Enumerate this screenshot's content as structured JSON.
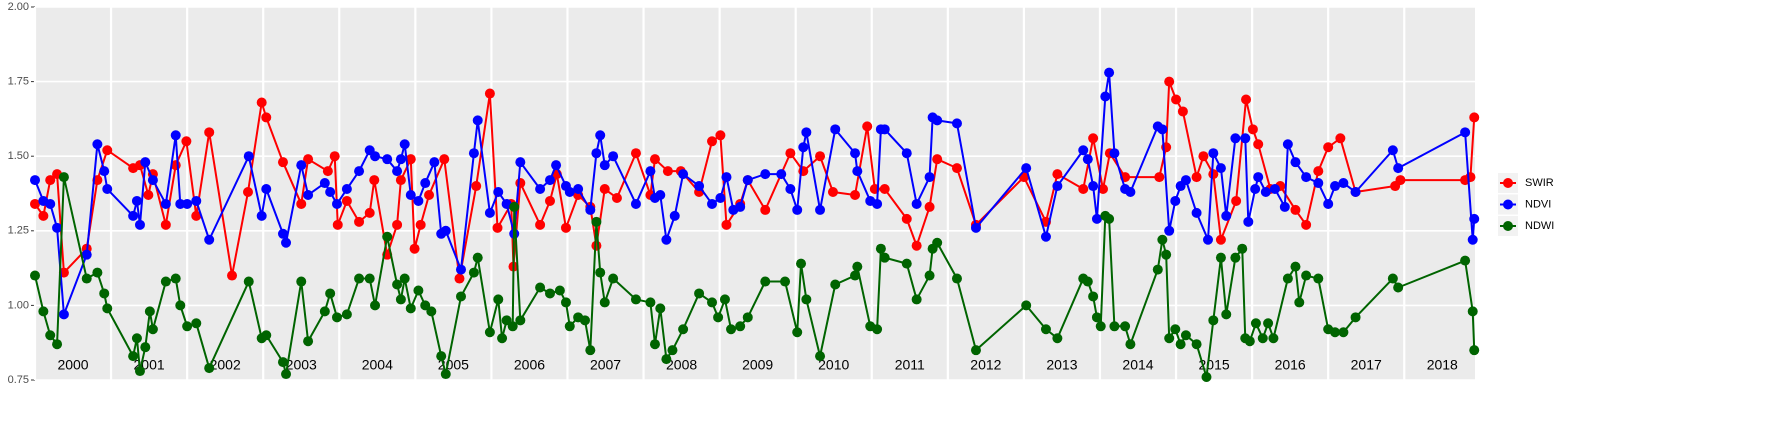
{
  "chart_data": {
    "type": "line",
    "xlim": [
      2000,
      2018.93
    ],
    "xticks": [
      2000,
      2001,
      2002,
      2003,
      2004,
      2005,
      2006,
      2007,
      2008,
      2009,
      2010,
      2011,
      2012,
      2013,
      2014,
      2015,
      2016,
      2017,
      2018
    ],
    "ylim": [
      0.75,
      2.0
    ],
    "yticks": [
      {
        "value": 0.75,
        "label": "0.75"
      },
      {
        "value": 1.0,
        "label": "1.00"
      },
      {
        "value": 1.25,
        "label": "1.25"
      },
      {
        "value": 1.5,
        "label": "1.50"
      },
      {
        "value": 1.75,
        "label": "1.75"
      },
      {
        "value": 2.0,
        "label": "2.00"
      }
    ],
    "grid": true,
    "legend": "right",
    "series": [
      {
        "name": "SWIR",
        "color": "#ff0000",
        "x": [
          2000.0,
          2000.11,
          2000.2,
          2000.29,
          2000.38,
          2000.68,
          2000.82,
          2000.95,
          2001.29,
          2001.38,
          2001.49,
          2001.55,
          2001.72,
          2001.85,
          2001.99,
          2002.12,
          2002.29,
          2002.59,
          2002.8,
          2002.98,
          2003.04,
          2003.26,
          2003.5,
          2003.59,
          2003.85,
          2003.94,
          2003.98,
          2004.1,
          2004.26,
          2004.4,
          2004.46,
          2004.63,
          2004.76,
          2004.81,
          2004.94,
          2004.99,
          2005.07,
          2005.18,
          2005.38,
          2005.58,
          2005.8,
          2005.98,
          2006.08,
          2006.26,
          2006.29,
          2006.38,
          2006.64,
          2006.77,
          2006.86,
          2006.98,
          2007.14,
          2007.3,
          2007.38,
          2007.49,
          2007.65,
          2007.9,
          2008.09,
          2008.15,
          2008.32,
          2008.49,
          2008.73,
          2008.9,
          2009.01,
          2009.09,
          2009.27,
          2009.37,
          2009.6,
          2009.93,
          2010.1,
          2010.32,
          2010.49,
          2010.78,
          2010.94,
          2011.04,
          2011.17,
          2011.46,
          2011.59,
          2011.76,
          2011.86,
          2012.12,
          2012.37,
          2013.0,
          2013.29,
          2013.44,
          2013.78,
          2013.91,
          2014.04,
          2014.13,
          2014.33,
          2014.78,
          2014.87,
          2014.91,
          2015.0,
          2015.09,
          2015.27,
          2015.36,
          2015.49,
          2015.59,
          2015.79,
          2015.92,
          2016.01,
          2016.08,
          2016.24,
          2016.37,
          2016.57,
          2016.71,
          2016.87,
          2017.0,
          2017.16,
          2017.36,
          2017.88,
          2017.95,
          2018.8,
          2018.87,
          2018.92
        ],
        "values": [
          1.34,
          1.3,
          1.42,
          1.44,
          1.11,
          1.19,
          1.42,
          1.52,
          1.46,
          1.47,
          1.37,
          1.44,
          1.27,
          1.47,
          1.55,
          1.3,
          1.58,
          1.1,
          1.38,
          1.68,
          1.63,
          1.48,
          1.34,
          1.49,
          1.45,
          1.5,
          1.27,
          1.35,
          1.28,
          1.31,
          1.42,
          1.17,
          1.27,
          1.42,
          1.49,
          1.19,
          1.27,
          1.37,
          1.49,
          1.09,
          1.4,
          1.71,
          1.26,
          1.34,
          1.13,
          1.41,
          1.27,
          1.35,
          1.44,
          1.26,
          1.37,
          1.33,
          1.2,
          1.39,
          1.36,
          1.51,
          1.37,
          1.49,
          1.45,
          1.45,
          1.38,
          1.55,
          1.57,
          1.27,
          1.34,
          1.42,
          1.32,
          1.51,
          1.45,
          1.5,
          1.38,
          1.37,
          1.6,
          1.39,
          1.39,
          1.29,
          1.2,
          1.33,
          1.49,
          1.46,
          1.27,
          1.43,
          1.28,
          1.44,
          1.39,
          1.56,
          1.39,
          1.51,
          1.43,
          1.43,
          1.53,
          1.75,
          1.69,
          1.65,
          1.43,
          1.5,
          1.44,
          1.22,
          1.35,
          1.69,
          1.59,
          1.54,
          1.39,
          1.4,
          1.32,
          1.27,
          1.45,
          1.53,
          1.56,
          1.38,
          1.4,
          1.42,
          1.42,
          1.43,
          1.63
        ]
      },
      {
        "name": "NDVI",
        "color": "#0000ff",
        "x": [
          2000.0,
          2000.11,
          2000.2,
          2000.29,
          2000.38,
          2000.68,
          2000.82,
          2000.91,
          2000.95,
          2001.29,
          2001.34,
          2001.38,
          2001.45,
          2001.55,
          2001.72,
          2001.85,
          2001.91,
          2002.0,
          2002.12,
          2002.29,
          2002.81,
          2002.98,
          2003.04,
          2003.26,
          2003.3,
          2003.5,
          2003.59,
          2003.81,
          2003.88,
          2003.97,
          2004.1,
          2004.26,
          2004.4,
          2004.47,
          2004.63,
          2004.76,
          2004.81,
          2004.86,
          2004.94,
          2005.04,
          2005.13,
          2005.25,
          2005.34,
          2005.4,
          2005.6,
          2005.77,
          2005.82,
          2005.98,
          2006.09,
          2006.2,
          2006.3,
          2006.38,
          2006.64,
          2006.77,
          2006.85,
          2006.98,
          2007.03,
          2007.14,
          2007.3,
          2007.38,
          2007.43,
          2007.49,
          2007.6,
          2007.9,
          2008.09,
          2008.15,
          2008.22,
          2008.3,
          2008.41,
          2008.52,
          2008.73,
          2008.9,
          2009.01,
          2009.09,
          2009.18,
          2009.27,
          2009.37,
          2009.6,
          2009.81,
          2009.93,
          2010.02,
          2010.1,
          2010.14,
          2010.32,
          2010.52,
          2010.78,
          2010.81,
          2010.98,
          2011.07,
          2011.12,
          2011.17,
          2011.46,
          2011.59,
          2011.76,
          2011.8,
          2011.86,
          2012.12,
          2012.37,
          2013.03,
          2013.29,
          2013.44,
          2013.78,
          2013.84,
          2013.91,
          2013.96,
          2014.07,
          2014.12,
          2014.19,
          2014.33,
          2014.4,
          2014.76,
          2014.82,
          2014.91,
          2014.99,
          2015.06,
          2015.13,
          2015.27,
          2015.42,
          2015.49,
          2015.59,
          2015.66,
          2015.78,
          2015.91,
          2015.95,
          2016.04,
          2016.08,
          2016.18,
          2016.3,
          2016.43,
          2016.47,
          2016.57,
          2016.71,
          2016.87,
          2017.0,
          2017.09,
          2017.2,
          2017.36,
          2017.85,
          2017.92,
          2018.8,
          2018.9,
          2018.92
        ],
        "values": [
          1.42,
          1.35,
          1.34,
          1.26,
          0.97,
          1.17,
          1.54,
          1.45,
          1.39,
          1.3,
          1.35,
          1.27,
          1.48,
          1.42,
          1.34,
          1.57,
          1.34,
          1.34,
          1.35,
          1.22,
          1.5,
          1.3,
          1.39,
          1.24,
          1.21,
          1.47,
          1.37,
          1.41,
          1.38,
          1.34,
          1.39,
          1.45,
          1.52,
          1.5,
          1.49,
          1.45,
          1.49,
          1.54,
          1.37,
          1.35,
          1.41,
          1.48,
          1.24,
          1.25,
          1.12,
          1.51,
          1.62,
          1.31,
          1.38,
          1.34,
          1.24,
          1.48,
          1.39,
          1.42,
          1.47,
          1.4,
          1.38,
          1.39,
          1.32,
          1.51,
          1.57,
          1.47,
          1.5,
          1.34,
          1.45,
          1.36,
          1.37,
          1.22,
          1.3,
          1.44,
          1.4,
          1.34,
          1.36,
          1.43,
          1.32,
          1.33,
          1.42,
          1.44,
          1.44,
          1.39,
          1.32,
          1.53,
          1.58,
          1.32,
          1.59,
          1.51,
          1.45,
          1.35,
          1.34,
          1.59,
          1.59,
          1.51,
          1.34,
          1.43,
          1.63,
          1.62,
          1.61,
          1.26,
          1.46,
          1.23,
          1.4,
          1.52,
          1.49,
          1.4,
          1.29,
          1.7,
          1.78,
          1.51,
          1.39,
          1.38,
          1.6,
          1.59,
          1.25,
          1.35,
          1.4,
          1.42,
          1.31,
          1.22,
          1.51,
          1.46,
          1.3,
          1.56,
          1.56,
          1.28,
          1.39,
          1.43,
          1.38,
          1.39,
          1.33,
          1.54,
          1.48,
          1.43,
          1.41,
          1.34,
          1.4,
          1.41,
          1.38,
          1.52,
          1.46,
          1.58,
          1.22,
          1.29
        ]
      },
      {
        "name": "NDWI",
        "color": "#006400",
        "x": [
          2000.0,
          2000.11,
          2000.2,
          2000.29,
          2000.38,
          2000.68,
          2000.82,
          2000.91,
          2000.95,
          2001.29,
          2001.34,
          2001.38,
          2001.45,
          2001.51,
          2001.55,
          2001.72,
          2001.85,
          2001.91,
          2002.0,
          2002.12,
          2002.29,
          2002.81,
          2002.98,
          2003.04,
          2003.26,
          2003.3,
          2003.5,
          2003.59,
          2003.81,
          2003.88,
          2003.97,
          2004.1,
          2004.26,
          2004.4,
          2004.47,
          2004.63,
          2004.76,
          2004.81,
          2004.86,
          2004.94,
          2005.04,
          2005.13,
          2005.21,
          2005.34,
          2005.4,
          2005.6,
          2005.77,
          2005.82,
          2005.98,
          2006.09,
          2006.14,
          2006.2,
          2006.28,
          2006.3,
          2006.38,
          2006.64,
          2006.77,
          2006.9,
          2006.98,
          2007.03,
          2007.14,
          2007.23,
          2007.3,
          2007.38,
          2007.43,
          2007.49,
          2007.6,
          2007.9,
          2008.09,
          2008.15,
          2008.22,
          2008.3,
          2008.38,
          2008.52,
          2008.73,
          2008.9,
          2008.98,
          2009.07,
          2009.15,
          2009.27,
          2009.37,
          2009.6,
          2009.86,
          2010.02,
          2010.07,
          2010.14,
          2010.32,
          2010.52,
          2010.78,
          2010.81,
          2010.98,
          2011.07,
          2011.12,
          2011.17,
          2011.46,
          2011.59,
          2011.76,
          2011.8,
          2011.86,
          2012.12,
          2012.37,
          2013.03,
          2013.29,
          2013.44,
          2013.78,
          2013.84,
          2013.91,
          2013.96,
          2014.01,
          2014.07,
          2014.12,
          2014.19,
          2014.33,
          2014.4,
          2014.76,
          2014.82,
          2014.87,
          2014.91,
          2014.99,
          2015.06,
          2015.13,
          2015.27,
          2015.4,
          2015.49,
          2015.59,
          2015.66,
          2015.78,
          2015.87,
          2015.91,
          2015.97,
          2016.05,
          2016.14,
          2016.21,
          2016.28,
          2016.47,
          2016.57,
          2016.62,
          2016.71,
          2016.87,
          2017.0,
          2017.09,
          2017.2,
          2017.36,
          2017.85,
          2017.92,
          2018.8,
          2018.9,
          2018.92
        ],
        "values": [
          1.1,
          0.98,
          0.9,
          0.87,
          1.43,
          1.09,
          1.11,
          1.04,
          0.99,
          0.83,
          0.89,
          0.78,
          0.86,
          0.98,
          0.92,
          1.08,
          1.09,
          1.0,
          0.93,
          0.94,
          0.79,
          1.08,
          0.89,
          0.9,
          0.81,
          0.77,
          1.08,
          0.88,
          0.98,
          1.04,
          0.96,
          0.97,
          1.09,
          1.09,
          1.0,
          1.23,
          1.07,
          1.02,
          1.09,
          0.99,
          1.05,
          1.0,
          0.98,
          0.83,
          0.77,
          1.03,
          1.11,
          1.16,
          0.91,
          1.02,
          0.89,
          0.95,
          0.93,
          1.33,
          0.95,
          1.06,
          1.04,
          1.05,
          1.01,
          0.93,
          0.96,
          0.95,
          0.85,
          1.28,
          1.11,
          1.01,
          1.09,
          1.02,
          1.01,
          0.87,
          0.99,
          0.82,
          0.85,
          0.92,
          1.04,
          1.01,
          0.96,
          1.02,
          0.92,
          0.93,
          0.96,
          1.08,
          1.08,
          0.91,
          1.14,
          1.02,
          0.83,
          1.07,
          1.1,
          1.13,
          0.93,
          0.92,
          1.19,
          1.16,
          1.14,
          1.02,
          1.1,
          1.19,
          1.21,
          1.09,
          0.85,
          1.0,
          0.92,
          0.89,
          1.09,
          1.08,
          1.03,
          0.96,
          0.93,
          1.3,
          1.29,
          0.93,
          0.93,
          0.87,
          1.12,
          1.22,
          1.17,
          0.89,
          0.92,
          0.87,
          0.9,
          0.87,
          0.76,
          0.95,
          1.16,
          0.97,
          1.16,
          1.19,
          0.89,
          0.88,
          0.94,
          0.89,
          0.94,
          0.89,
          1.09,
          1.13,
          1.01,
          1.1,
          1.09,
          0.92,
          0.91,
          0.91,
          0.96,
          1.09,
          1.06,
          1.15,
          0.98,
          0.85
        ]
      }
    ]
  }
}
